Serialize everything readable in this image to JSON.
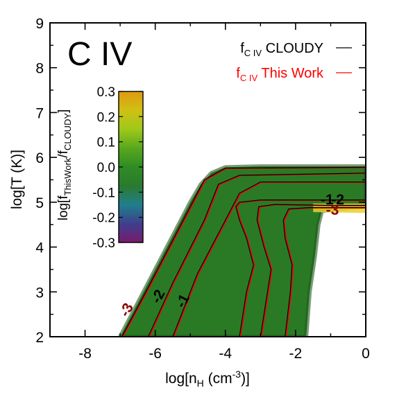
{
  "chart_data": {
    "type": "heatmap",
    "title": "C IV",
    "xlabel": "log[n_H (cm^-3)]",
    "ylabel": "log[T (K)]",
    "xlim": [
      -9,
      0
    ],
    "ylim": [
      2,
      9
    ],
    "x_ticks": [
      -8,
      -6,
      -4,
      -2,
      0
    ],
    "y_ticks": [
      2,
      3,
      4,
      5,
      6,
      7,
      8,
      9
    ],
    "x_tick_labels": [
      "-8",
      "-6",
      "-4",
      "-2",
      "0"
    ],
    "y_tick_labels": [
      "2",
      "3",
      "4",
      "5",
      "6",
      "7",
      "8",
      "9"
    ],
    "x_axis_title_parts": [
      "log[n",
      "H",
      " (cm",
      "-3",
      ")]"
    ],
    "y_axis_title": "log[T (K)]",
    "colorbar": {
      "label_parts": [
        "log[f",
        "ThisWork",
        "/f",
        "CLOUDY",
        "]"
      ],
      "range": [
        -0.3,
        0.3
      ],
      "ticks": [
        0.3,
        0.2,
        0.1,
        0.0,
        -0.1,
        -0.2,
        -0.3
      ],
      "tick_labels": [
        "0.3",
        "0.2",
        "0.1",
        "0.0",
        "-0.1",
        "-0.2",
        "-0.3"
      ],
      "colors": [
        "#7a1a6a",
        "#3e3f8e",
        "#1f7f8c",
        "#2b7a2e",
        "#2f8c25",
        "#58a81e",
        "#9fc81a",
        "#cfc015",
        "#e09a10"
      ]
    },
    "legend": {
      "placement": "top-right",
      "entries": [
        {
          "label_parts": [
            "f",
            "C IV",
            " CLOUDY"
          ],
          "color": "#000000"
        },
        {
          "label_parts": [
            "f",
            "C IV",
            " This Work"
          ],
          "color": "#ff0000"
        }
      ]
    },
    "colors": {
      "field": "#2a7a25",
      "field_dark": "#1f5a1c",
      "hot_band": "#e8d22a",
      "cloudy": "#000000",
      "this_work": "#ff0000"
    },
    "region_outline": [
      [
        -7.0,
        2.0
      ],
      [
        -6.6,
        2.6
      ],
      [
        -6.2,
        3.2
      ],
      [
        -5.8,
        3.8
      ],
      [
        -5.4,
        4.4
      ],
      [
        -5.0,
        5.0
      ],
      [
        -4.7,
        5.4
      ],
      [
        -4.4,
        5.65
      ],
      [
        -4.0,
        5.78
      ],
      [
        -3.0,
        5.8
      ],
      [
        0.0,
        5.8
      ],
      [
        0.0,
        4.9
      ],
      [
        -0.6,
        4.86
      ],
      [
        -1.0,
        4.84
      ],
      [
        -1.25,
        4.8
      ],
      [
        -1.35,
        4.5
      ],
      [
        -1.45,
        3.8
      ],
      [
        -1.6,
        3.0
      ],
      [
        -1.7,
        2.0
      ]
    ],
    "contours": [
      {
        "level": "-1",
        "points": [
          [
            -5.5,
            2.0
          ],
          [
            -4.8,
            3.4
          ],
          [
            -4.0,
            4.6
          ],
          [
            -3.6,
            5.2
          ],
          [
            -3.0,
            5.45
          ],
          [
            0.0,
            5.45
          ]
        ]
      },
      {
        "level": "-2",
        "points": [
          [
            -6.2,
            2.0
          ],
          [
            -5.5,
            3.2
          ],
          [
            -4.6,
            4.6
          ],
          [
            -4.2,
            5.4
          ],
          [
            -3.6,
            5.6
          ],
          [
            0.0,
            5.65
          ]
        ]
      },
      {
        "level": "-3",
        "points": [
          [
            -6.95,
            2.0
          ],
          [
            -6.2,
            3.1
          ],
          [
            -5.2,
            4.6
          ],
          [
            -4.6,
            5.5
          ],
          [
            -4.0,
            5.76
          ],
          [
            0.0,
            5.78
          ]
        ]
      },
      {
        "level": "",
        "points": [
          [
            -3.6,
            2.0
          ],
          [
            -3.4,
            3.0
          ],
          [
            -3.2,
            3.6
          ],
          [
            -3.4,
            4.2
          ],
          [
            -3.6,
            4.6
          ],
          [
            -3.7,
            4.9
          ],
          [
            -3.6,
            5.0
          ],
          [
            -3.0,
            5.05
          ],
          [
            0.0,
            5.05
          ]
        ]
      },
      {
        "level": "",
        "points": [
          [
            -3.0,
            2.0
          ],
          [
            -2.8,
            3.0
          ],
          [
            -2.7,
            3.5
          ],
          [
            -2.9,
            4.0
          ],
          [
            -3.1,
            4.6
          ],
          [
            -3.05,
            4.9
          ],
          [
            -2.6,
            4.95
          ],
          [
            -1.0,
            4.93
          ],
          [
            0.0,
            4.93
          ]
        ]
      },
      {
        "level": "",
        "points": [
          [
            -2.3,
            2.0
          ],
          [
            -2.15,
            3.0
          ],
          [
            -2.1,
            3.6
          ],
          [
            -2.3,
            4.2
          ],
          [
            -2.35,
            4.6
          ],
          [
            -2.2,
            4.85
          ],
          [
            -1.6,
            4.88
          ],
          [
            0.0,
            4.88
          ]
        ]
      }
    ],
    "contour_labels": [
      {
        "text": "-1",
        "x": -5.1,
        "y": 2.75,
        "angle": -62
      },
      {
        "text": "-2",
        "x": -5.8,
        "y": 2.85,
        "angle": -62
      },
      {
        "text": "-3",
        "x": -6.7,
        "y": 2.55,
        "angle": -62
      },
      {
        "text": "-1",
        "x": -1.1,
        "y": 4.95,
        "angle": 0
      },
      {
        "text": "-2",
        "x": -0.8,
        "y": 4.95,
        "angle": 0
      },
      {
        "text": "-3",
        "x": -0.95,
        "y": 4.72,
        "angle": 0
      }
    ]
  }
}
